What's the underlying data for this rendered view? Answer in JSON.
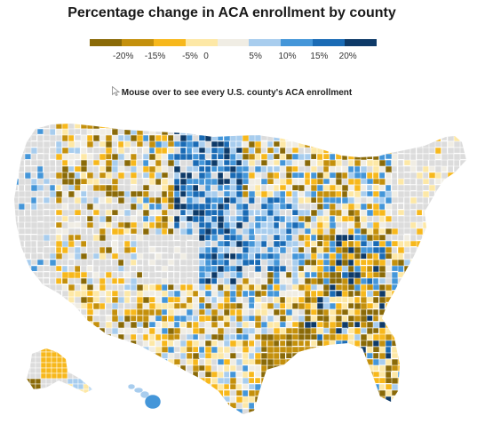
{
  "title": "Percentage change in ACA enrollment by county",
  "legend": {
    "colors": [
      "#8a6a08",
      "#c4900c",
      "#f7b81c",
      "#fde8a6",
      "#f0ede4",
      "#a8cdee",
      "#4496d9",
      "#1a6bb5",
      "#0e3a68"
    ],
    "tick_labels": [
      "-20%",
      "-15%",
      "-5%",
      "0",
      "5%",
      "10%",
      "15%",
      "20%"
    ]
  },
  "hint": {
    "text": "Mouse over to see every U.S. county's ACA enrollment",
    "icon": "cursor-icon"
  },
  "map": {
    "no_data_color": "#dcdcdc",
    "border_color": "#ffffff"
  }
}
